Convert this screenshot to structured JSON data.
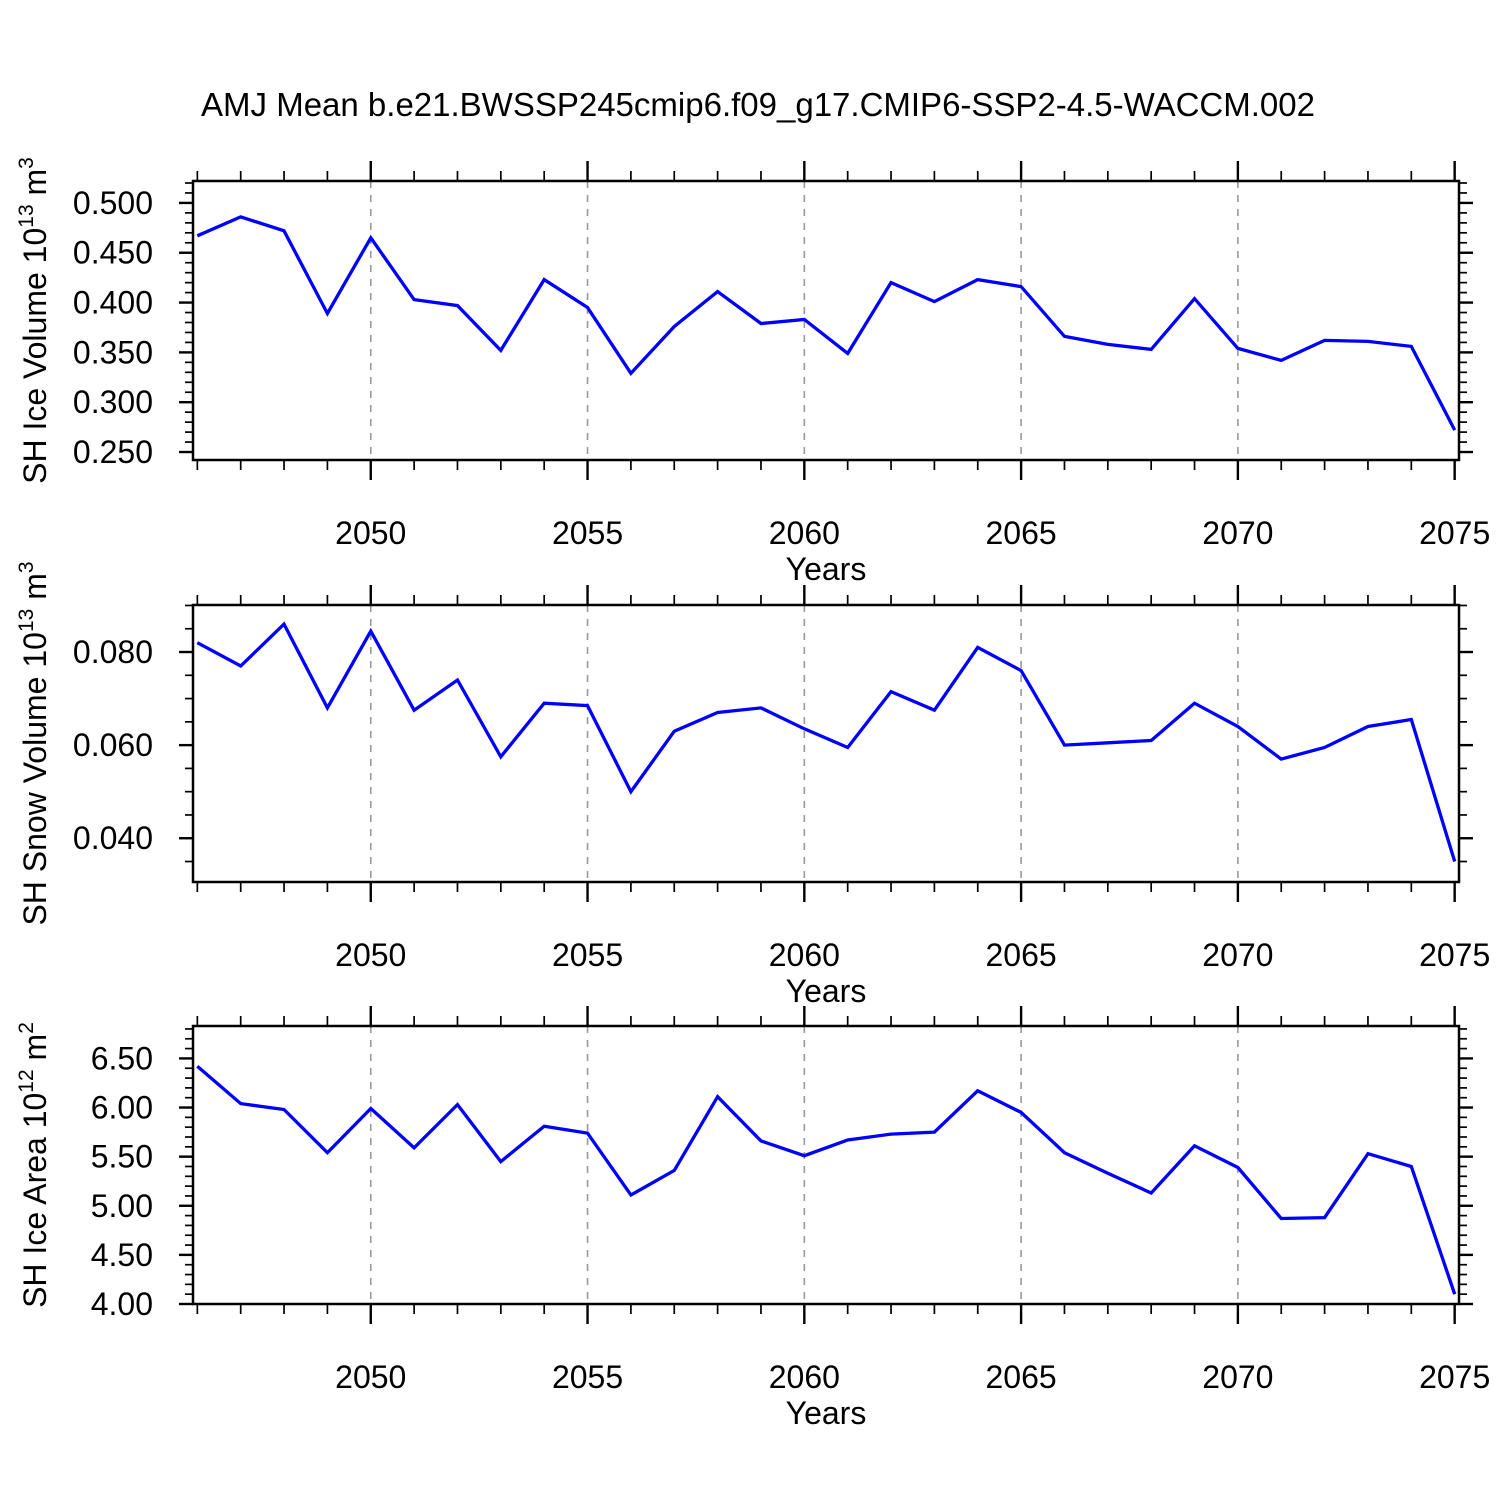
{
  "title": "AMJ Mean b.e21.BWSSP245cmip6.f09_g17.CMIP6-SSP2-4.5-WACCM.002",
  "colors": {
    "line": "#0000ff",
    "frame": "#000000",
    "grid": "#999999",
    "text": "#000000",
    "background": "#ffffff"
  },
  "x_axis": {
    "label": "Years",
    "xlim": [
      2045.9,
      2075.1
    ],
    "minor_tick_step_years": 1,
    "major_tick_labels": [
      "2050",
      "2055",
      "2060",
      "2065",
      "2070",
      "2075"
    ],
    "major_tick_years": [
      2050,
      2055,
      2060,
      2065,
      2070,
      2075
    ],
    "grid_years": [
      2050,
      2055,
      2060,
      2065,
      2070
    ]
  },
  "years": [
    2046,
    2047,
    2048,
    2049,
    2050,
    2051,
    2052,
    2053,
    2054,
    2055,
    2056,
    2057,
    2058,
    2059,
    2060,
    2061,
    2062,
    2063,
    2064,
    2065,
    2066,
    2067,
    2068,
    2069,
    2070,
    2071,
    2072,
    2073,
    2074,
    2075
  ],
  "chart_data": [
    {
      "type": "line",
      "name": "sh-ice-volume",
      "ylabel_text": "SH Ice Volume 10^13 m^3",
      "ylabel_parts": {
        "base": "SH Ice Volume 10",
        "exp": "13",
        "unit": " m",
        "unit_exp": "3"
      },
      "xlabel": "Years",
      "ylim": [
        0.242,
        0.522
      ],
      "ytick_minor_step": 0.01,
      "yticks_major": [
        {
          "value": 0.5,
          "label": "0.500"
        },
        {
          "value": 0.45,
          "label": "0.450"
        },
        {
          "value": 0.4,
          "label": "0.400"
        },
        {
          "value": 0.35,
          "label": "0.350"
        },
        {
          "value": 0.3,
          "label": "0.300"
        },
        {
          "value": 0.25,
          "label": "0.250"
        }
      ],
      "values": [
        0.467,
        0.486,
        0.472,
        0.389,
        0.465,
        0.403,
        0.397,
        0.352,
        0.423,
        0.395,
        0.329,
        0.376,
        0.411,
        0.379,
        0.383,
        0.349,
        0.42,
        0.401,
        0.423,
        0.416,
        0.366,
        0.358,
        0.353,
        0.404,
        0.354,
        0.342,
        0.362,
        0.361,
        0.356,
        0.272
      ]
    },
    {
      "type": "line",
      "name": "sh-snow-volume",
      "ylabel_text": "SH Snow Volume 10^13 m^3",
      "ylabel_parts": {
        "base": "SH Snow Volume 10",
        "exp": "13",
        "unit": " m",
        "unit_exp": "3"
      },
      "xlabel": "Years",
      "ylim": [
        0.0306,
        0.0901
      ],
      "ytick_minor_step": 0.005,
      "yticks_major": [
        {
          "value": 0.08,
          "label": "0.080"
        },
        {
          "value": 0.06,
          "label": "0.060"
        },
        {
          "value": 0.04,
          "label": "0.040"
        }
      ],
      "values": [
        0.082,
        0.077,
        0.086,
        0.068,
        0.0845,
        0.0675,
        0.074,
        0.0575,
        0.069,
        0.0685,
        0.05,
        0.063,
        0.067,
        0.068,
        0.0635,
        0.0595,
        0.0715,
        0.0675,
        0.081,
        0.076,
        0.06,
        0.0605,
        0.061,
        0.069,
        0.064,
        0.057,
        0.0595,
        0.064,
        0.0655,
        0.035
      ]
    },
    {
      "type": "line",
      "name": "sh-ice-area",
      "ylabel_text": "SH Ice Area 10^12 m^2",
      "ylabel_parts": {
        "base": "SH Ice Area 10",
        "exp": "12",
        "unit": " m",
        "unit_exp": "2"
      },
      "xlabel": "Years",
      "ylim": [
        4.0,
        6.83
      ],
      "ytick_minor_step": 0.1,
      "yticks_major": [
        {
          "value": 6.5,
          "label": "6.50"
        },
        {
          "value": 6.0,
          "label": "6.00"
        },
        {
          "value": 5.5,
          "label": "5.50"
        },
        {
          "value": 5.0,
          "label": "5.00"
        },
        {
          "value": 4.5,
          "label": "4.50"
        },
        {
          "value": 4.0,
          "label": "4.00"
        }
      ],
      "values": [
        6.42,
        6.04,
        5.98,
        5.54,
        5.99,
        5.59,
        6.03,
        5.45,
        5.81,
        5.74,
        5.11,
        5.36,
        6.11,
        5.66,
        5.51,
        5.67,
        5.73,
        5.75,
        6.17,
        5.95,
        5.54,
        5.33,
        5.13,
        5.61,
        5.39,
        4.87,
        4.88,
        5.53,
        5.4,
        4.1
      ]
    }
  ]
}
